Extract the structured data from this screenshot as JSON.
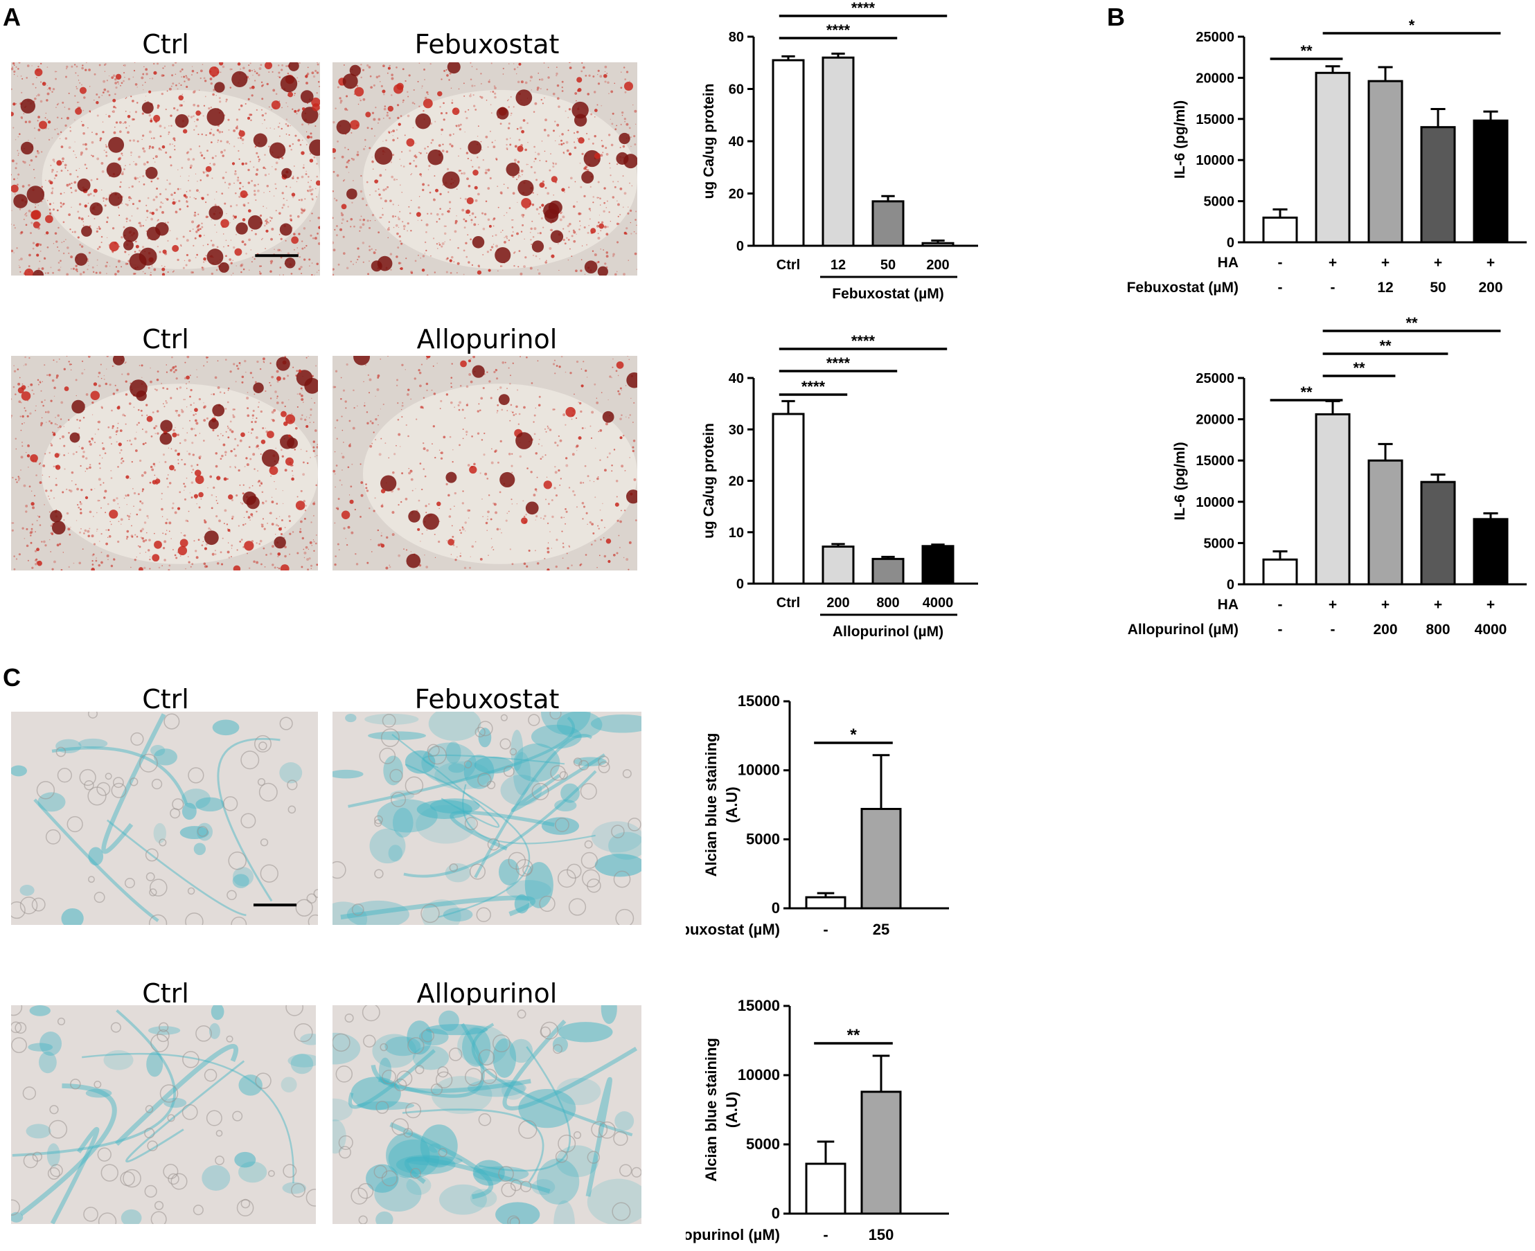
{
  "panels": [
    {
      "letter": "A"
    },
    {
      "letter": "B"
    },
    {
      "letter": "C"
    }
  ],
  "micrographs": [
    {
      "label": "Ctrl",
      "stain": "alizarin",
      "seed": 11,
      "density": 1.0,
      "scalebar": true
    },
    {
      "label": "Febuxostat",
      "stain": "alizarin",
      "seed": 23,
      "density": 0.65,
      "scalebar": false
    },
    {
      "label": "Ctrl",
      "stain": "alizarin",
      "seed": 37,
      "density": 0.7,
      "scalebar": false
    },
    {
      "label": "Allopurinol",
      "stain": "alizarin",
      "seed": 53,
      "density": 0.25,
      "scalebar": false
    },
    {
      "label": "Ctrl",
      "stain": "alcian",
      "seed": 61,
      "density": 0.35,
      "scalebar": true
    },
    {
      "label": "Febuxostat",
      "stain": "alcian",
      "seed": 71,
      "density": 1.0,
      "scalebar": false
    },
    {
      "label": "Ctrl",
      "stain": "alcian",
      "seed": 83,
      "density": 0.45,
      "scalebar": false
    },
    {
      "label": "Allopurinol",
      "stain": "alcian",
      "seed": 97,
      "density": 1.0,
      "scalebar": false
    }
  ],
  "colors": {
    "alizarin_bg": "#ede8e2",
    "alizarin_spot": "#c8281e",
    "alizarin_dark": "#7a1410",
    "alcian_bg": "#e2dcd9",
    "alcian_stain": "#3fb3c4"
  },
  "chart_data": [
    {
      "type": "bar",
      "ylabel": "ug Ca/ug protein",
      "yticks": [
        "0",
        "20",
        "40",
        "60",
        "80"
      ],
      "ylim": [
        0,
        80
      ],
      "categories": [
        "Ctrl",
        "12",
        "50",
        "200"
      ],
      "values": [
        71,
        72,
        17,
        1
      ],
      "errors": [
        1.5,
        1.5,
        2,
        1
      ],
      "bar_colors": [
        "#ffffff",
        "#d9d9d9",
        "#8c8c8c",
        "#ffffff"
      ],
      "group_label": "Febuxostat (µM)",
      "significance": [
        {
          "from": 0,
          "to": 2,
          "label": "****"
        },
        {
          "from": 0,
          "to": 3,
          "label": "****"
        }
      ]
    },
    {
      "type": "bar",
      "ylabel": "ug Ca/ug protein",
      "yticks": [
        "0",
        "10",
        "20",
        "30",
        "40"
      ],
      "ylim": [
        0,
        40
      ],
      "categories": [
        "Ctrl",
        "200",
        "800",
        "4000"
      ],
      "values": [
        33,
        7.2,
        4.8,
        7.3
      ],
      "errors": [
        2.5,
        0.5,
        0.4,
        0.3
      ],
      "bar_colors": [
        "#ffffff",
        "#d9d9d9",
        "#8c8c8c",
        "#000000"
      ],
      "group_label": "Allopurinol (µM)",
      "significance": [
        {
          "from": 0,
          "to": 1,
          "label": "****"
        },
        {
          "from": 0,
          "to": 2,
          "label": "****"
        },
        {
          "from": 0,
          "to": 3,
          "label": "****"
        }
      ]
    },
    {
      "type": "bar",
      "ylabel": "IL-6 (pg/ml)",
      "yticks": [
        "0",
        "5000",
        "10000",
        "15000",
        "20000",
        "25000"
      ],
      "ylim": [
        0,
        25000
      ],
      "categories": [
        "1",
        "2",
        "3",
        "4",
        "5"
      ],
      "values": [
        3000,
        20600,
        19600,
        14000,
        14800
      ],
      "errors": [
        1000,
        800,
        1700,
        2200,
        1100
      ],
      "bar_colors": [
        "#ffffff",
        "#d9d9d9",
        "#a6a6a6",
        "#595959",
        "#000000"
      ],
      "rows": [
        {
          "label": "HA",
          "values": [
            "-",
            "+",
            "+",
            "+",
            "+"
          ]
        },
        {
          "label": "Febuxostat (µM)",
          "values": [
            "-",
            "-",
            "12",
            "50",
            "200"
          ]
        }
      ],
      "significance": [
        {
          "from": 0,
          "to": 1,
          "label": "**"
        },
        {
          "from": 1,
          "to": 4,
          "label": "*"
        }
      ]
    },
    {
      "type": "bar",
      "ylabel": "IL-6 (pg/ml)",
      "yticks": [
        "0",
        "5000",
        "10000",
        "15000",
        "20000",
        "25000"
      ],
      "ylim": [
        0,
        25000
      ],
      "categories": [
        "1",
        "2",
        "3",
        "4",
        "5"
      ],
      "values": [
        3000,
        20600,
        15000,
        12400,
        7900
      ],
      "errors": [
        1000,
        1600,
        2000,
        900,
        700
      ],
      "bar_colors": [
        "#ffffff",
        "#d9d9d9",
        "#a6a6a6",
        "#595959",
        "#000000"
      ],
      "rows": [
        {
          "label": "HA",
          "values": [
            "-",
            "+",
            "+",
            "+",
            "+"
          ]
        },
        {
          "label": "Allopurinol (µM)",
          "values": [
            "-",
            "-",
            "200",
            "800",
            "4000"
          ]
        }
      ],
      "significance": [
        {
          "from": 0,
          "to": 1,
          "label": "**"
        },
        {
          "from": 1,
          "to": 2,
          "label": "**"
        },
        {
          "from": 1,
          "to": 3,
          "label": "**"
        },
        {
          "from": 1,
          "to": 4,
          "label": "**"
        }
      ]
    },
    {
      "type": "bar",
      "ylabel": [
        "Alcian blue staining",
        "(A.U)"
      ],
      "yticks": [
        "0",
        "5000",
        "10000",
        "15000"
      ],
      "ylim": [
        0,
        15000
      ],
      "categories": [
        "-",
        "25"
      ],
      "values": [
        800,
        7200
      ],
      "errors": [
        300,
        3900
      ],
      "bar_colors": [
        "#ffffff",
        "#a6a6a6"
      ],
      "row_label": "Febuxostat (µM)",
      "significance": [
        {
          "from": 0,
          "to": 1,
          "label": "*"
        }
      ]
    },
    {
      "type": "bar",
      "ylabel": [
        "Alcian blue staining",
        "(A.U)"
      ],
      "yticks": [
        "0",
        "5000",
        "10000",
        "15000"
      ],
      "ylim": [
        0,
        15000
      ],
      "categories": [
        "-",
        "150"
      ],
      "values": [
        3600,
        8800
      ],
      "errors": [
        1600,
        2600
      ],
      "bar_colors": [
        "#ffffff",
        "#a6a6a6"
      ],
      "row_label": "Allopurinol (µM)",
      "significance": [
        {
          "from": 0,
          "to": 1,
          "label": "**"
        }
      ]
    }
  ]
}
